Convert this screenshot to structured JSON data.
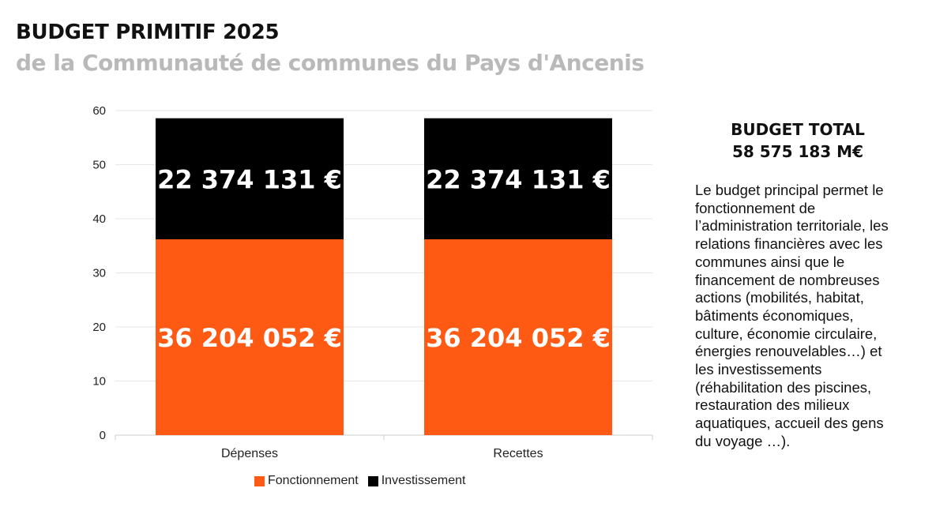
{
  "header": {
    "title": "BUDGET PRIMITIF 2025",
    "subtitle": "de la Communauté de communes du Pays d'Ancenis"
  },
  "side_panel": {
    "heading_line1": "BUDGET TOTAL",
    "heading_line2": "58 575 183 M€",
    "description": "Le budget principal permet le\nfonctionnement de\nl’administration territoriale, les\nrelations financières avec les\ncommunes ainsi que le\nfinancement de nombreuses\nactions (mobilités, habitat,\nbâtiments économiques,\nculture, économie circulaire,\nénergies renouvelables…) et\nles investissements\n(réhabilitation des piscines,\nrestauration des milieux\naquatiques, accueil des gens\ndu voyage …)."
  },
  "colors": {
    "fonctionnement": "#ff5a14",
    "investissement": "#000000",
    "grid": "#e6e6e6",
    "axis_text": "#222222",
    "bar_label": "#ffffff"
  },
  "chart_data": {
    "type": "bar",
    "stacked": true,
    "categories": [
      "Dépenses",
      "Recettes"
    ],
    "series": [
      {
        "name": "Fonctionnement",
        "values": [
          36.204052,
          36.204052
        ],
        "labels": [
          "36 204 052 €",
          "36 204 052 €"
        ]
      },
      {
        "name": "Investissement",
        "values": [
          22.374131,
          22.374131
        ],
        "labels": [
          "22 374 131 €",
          "22 374 131 €"
        ]
      }
    ],
    "yticks": [
      "0",
      "10",
      "20",
      "30",
      "40",
      "50",
      "60"
    ],
    "ylim": [
      0,
      60
    ],
    "xlabel": "",
    "ylabel": "",
    "grid": true,
    "legend_position": "bottom"
  }
}
